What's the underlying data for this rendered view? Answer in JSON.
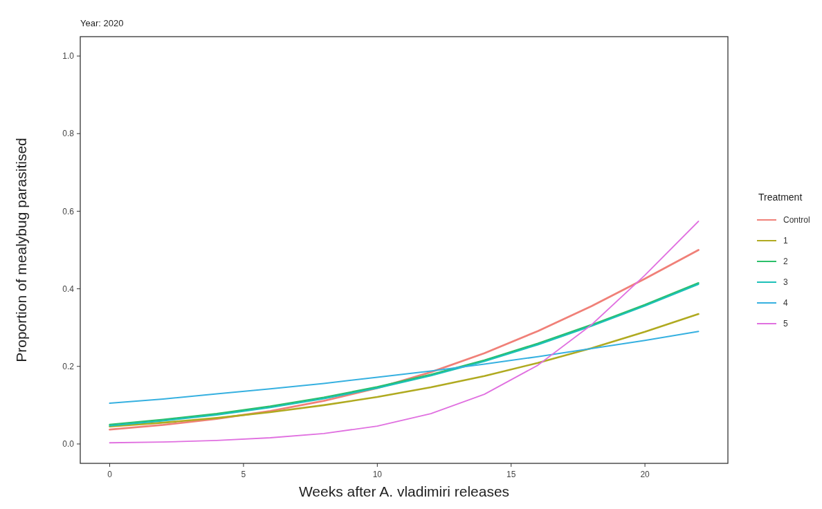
{
  "chart_data": {
    "type": "line",
    "title": "Year: 2020",
    "xlabel": "Weeks after A. vladimiri releases",
    "ylabel": "Proportion of mealybug parasitised",
    "legend_title": "Treatment",
    "legend": "right",
    "grid": false,
    "line_style": "solid",
    "marker": "none",
    "x": [
      0,
      2,
      4,
      6,
      8,
      10,
      12,
      14,
      16,
      18,
      20,
      22
    ],
    "xlim": [
      -1.1,
      23.1
    ],
    "xticks": [
      0,
      5,
      10,
      15,
      20
    ],
    "ylim": [
      -0.05,
      1.05
    ],
    "yticks": [
      {
        "value": 0,
        "label": "0.0"
      },
      0.2,
      0.4,
      0.6,
      0.8,
      {
        "value": 1,
        "label": "1.0"
      }
    ],
    "series": [
      {
        "name": "Control",
        "color": "#f08078",
        "values": [
          0.037,
          0.049,
          0.065,
          0.085,
          0.111,
          0.144,
          0.185,
          0.234,
          0.291,
          0.355,
          0.426,
          0.5
        ]
      },
      {
        "name": "1",
        "color": "#b0aa20",
        "values": [
          0.045,
          0.055,
          0.067,
          0.082,
          0.1,
          0.121,
          0.146,
          0.175,
          0.209,
          0.247,
          0.289,
          0.335
        ]
      },
      {
        "name": "2",
        "color": "#2bbf6a",
        "values": [
          0.05,
          0.063,
          0.078,
          0.097,
          0.12,
          0.147,
          0.179,
          0.216,
          0.259,
          0.307,
          0.359,
          0.415
        ]
      },
      {
        "name": "3",
        "color": "#1cc0b8",
        "values": [
          0.047,
          0.06,
          0.075,
          0.094,
          0.117,
          0.144,
          0.176,
          0.213,
          0.256,
          0.304,
          0.356,
          0.412
        ]
      },
      {
        "name": "4",
        "color": "#35b0e0",
        "values": [
          0.105,
          0.116,
          0.129,
          0.142,
          0.156,
          0.172,
          0.188,
          0.206,
          0.225,
          0.246,
          0.267,
          0.29
        ]
      },
      {
        "name": "5",
        "color": "#e070e0",
        "values": [
          0.003,
          0.005,
          0.009,
          0.016,
          0.027,
          0.046,
          0.078,
          0.128,
          0.203,
          0.307,
          0.435,
          0.574
        ]
      }
    ]
  }
}
